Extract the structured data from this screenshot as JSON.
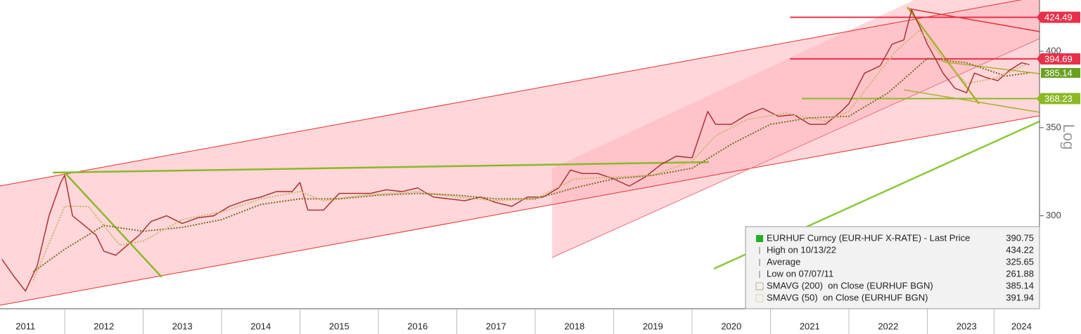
{
  "chart_data": {
    "type": "line",
    "log_scale": true,
    "scale_label": "Log",
    "xlim": [
      2011.175,
      2024.43
    ],
    "xticks": [
      {
        "value": 2011.5,
        "label": "2011"
      },
      {
        "value": 2012.5,
        "label": "2012"
      },
      {
        "value": 2013.5,
        "label": "2013"
      },
      {
        "value": 2014.5,
        "label": "2014"
      },
      {
        "value": 2015.5,
        "label": "2015"
      },
      {
        "value": 2016.5,
        "label": "2016"
      },
      {
        "value": 2017.5,
        "label": "2017"
      },
      {
        "value": 2018.5,
        "label": "2018"
      },
      {
        "value": 2019.5,
        "label": "2019"
      },
      {
        "value": 2020.5,
        "label": "2020"
      },
      {
        "value": 2021.5,
        "label": "2021"
      },
      {
        "value": 2022.5,
        "label": "2022"
      },
      {
        "value": 2023.5,
        "label": "2023"
      },
      {
        "value": 2024.2,
        "label": "2024"
      }
    ],
    "ylim": [
      255,
      437.5
    ],
    "yticks": [
      300,
      350,
      400
    ],
    "series": [
      {
        "name": "EURHUF Curncy (EUR-HUF X-RATE) - Last Price",
        "last": 390.75,
        "color": "#a52a2a",
        "width": 1.4,
        "dash": "",
        "x": [
          2011.2,
          2011.35,
          2011.5,
          2011.65,
          2011.8,
          2011.95,
          2012.0,
          2012.1,
          2012.25,
          2012.4,
          2012.5,
          2012.65,
          2012.8,
          2012.95,
          2013.1,
          2013.3,
          2013.5,
          2013.7,
          2013.9,
          2014.1,
          2014.3,
          2014.5,
          2014.7,
          2014.9,
          2015.0,
          2015.1,
          2015.3,
          2015.5,
          2015.7,
          2015.9,
          2016.1,
          2016.3,
          2016.5,
          2016.7,
          2016.9,
          2017.1,
          2017.3,
          2017.5,
          2017.7,
          2017.9,
          2018.1,
          2018.3,
          2018.45,
          2018.6,
          2018.8,
          2019.0,
          2019.2,
          2019.4,
          2019.6,
          2019.8,
          2020.0,
          2020.2,
          2020.3,
          2020.5,
          2020.7,
          2020.9,
          2021.1,
          2021.3,
          2021.5,
          2021.7,
          2021.9,
          2022.0,
          2022.2,
          2022.4,
          2022.55,
          2022.7,
          2022.8,
          2022.9,
          2023.0,
          2023.1,
          2023.2,
          2023.35,
          2023.5,
          2023.6,
          2023.75,
          2023.9,
          2024.05,
          2024.2,
          2024.3
        ],
        "values": [
          278,
          270,
          263,
          275,
          300,
          318,
          322,
          300,
          295,
          290,
          282,
          280,
          285,
          290,
          297,
          300,
          296,
          299,
          300,
          305,
          308,
          310,
          313,
          313,
          318,
          303,
          303,
          312,
          312,
          312,
          314,
          313,
          315,
          310,
          309,
          308,
          310,
          307,
          305,
          310,
          310,
          315,
          325,
          323,
          323,
          320,
          316,
          321,
          328,
          333,
          332,
          360,
          352,
          352,
          358,
          362,
          357,
          358,
          352,
          352,
          360,
          365,
          385,
          390,
          405,
          408,
          430,
          418,
          405,
          395,
          385,
          375,
          372,
          385,
          382,
          380,
          387,
          392,
          390.75
        ]
      },
      {
        "name": "SMAVG (200)  on Close (EURHUF BGN)",
        "last": 385.14,
        "color": "#7d6b1e",
        "width": 2,
        "dash": "2 2",
        "x": [
          2011.6,
          2012.0,
          2012.5,
          2013.0,
          2013.5,
          2014.0,
          2014.5,
          2015.0,
          2015.5,
          2016.0,
          2016.5,
          2017.0,
          2017.5,
          2018.0,
          2018.5,
          2019.0,
          2019.5,
          2020.0,
          2020.5,
          2021.0,
          2021.5,
          2022.0,
          2022.5,
          2023.0,
          2023.5,
          2024.0,
          2024.3
        ],
        "values": [
          272,
          283,
          295,
          292,
          294,
          298,
          306,
          309,
          309,
          311,
          312,
          311,
          309,
          309,
          315,
          320,
          322,
          326,
          340,
          352,
          356,
          357,
          372,
          395,
          392,
          383,
          385.14
        ]
      },
      {
        "name": "SMAVG (50)  on Close (EURHUF BGN)",
        "last": 391.94,
        "color": "#c9b66a",
        "width": 2,
        "dash": "2 2",
        "x": [
          2011.6,
          2012.0,
          2012.3,
          2012.7,
          2013.0,
          2013.5,
          2014.0,
          2014.5,
          2015.0,
          2015.3,
          2015.8,
          2016.5,
          2017.0,
          2017.5,
          2018.0,
          2018.5,
          2019.0,
          2019.5,
          2020.0,
          2020.3,
          2020.7,
          2021.2,
          2021.7,
          2022.0,
          2022.3,
          2022.6,
          2022.9,
          2023.2,
          2023.5,
          2023.9,
          2024.3
        ],
        "values": [
          268,
          305,
          305,
          285,
          287,
          298,
          302,
          309,
          313,
          308,
          311,
          313,
          310,
          308,
          309,
          320,
          321,
          322,
          330,
          345,
          355,
          359,
          354,
          360,
          380,
          400,
          415,
          395,
          378,
          382,
          391.94
        ]
      }
    ],
    "legend_stats": [
      {
        "name": "High on 10/13/22",
        "value": 434.22
      },
      {
        "name": "Average",
        "value": 325.65
      },
      {
        "name": "Low on 07/07/11",
        "value": 261.88
      }
    ],
    "price_lines": [
      {
        "value": 424.49,
        "color": "#e8304a",
        "from": 2021.25
      },
      {
        "value": 394.69,
        "color": "#e8304a",
        "from": 2021.25
      },
      {
        "value": 368.23,
        "color": "#8cb826",
        "from": 2021.4
      }
    ]
  }
}
